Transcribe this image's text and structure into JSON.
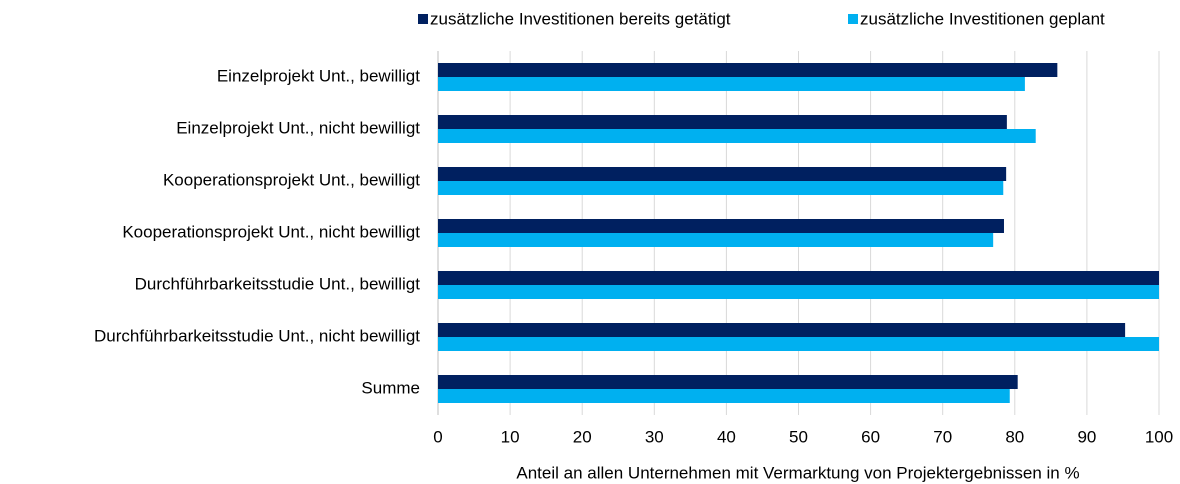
{
  "chart_data": {
    "type": "hbar",
    "categories": [
      "Einzelprojekt Unt., bewilligt",
      "Einzelprojekt Unt., nicht bewilligt",
      "Kooperationsprojekt Unt., bewilligt",
      "Kooperationsprojekt Unt., nicht bewilligt",
      "Durchführbarkeitsstudie Unt., bewilligt",
      "Durchführbarkeitsstudie Unt., nicht bewilligt",
      "Summe"
    ],
    "series": [
      {
        "name": "zusätzliche Investitionen bereits getätigt",
        "color": "#002060",
        "values": [
          85.9,
          78.9,
          78.8,
          78.5,
          100,
          95.3,
          80.4
        ]
      },
      {
        "name": "zusätzliche Investitionen geplant",
        "color": "#00b0f0",
        "values": [
          81.4,
          82.9,
          78.4,
          77.0,
          100,
          100,
          79.3
        ]
      }
    ],
    "xlabel": "Anteil an allen Unternehmen  mit Vermarktung von Projektergebnissen  in %",
    "xlim": [
      0,
      100
    ],
    "xticks": [
      0,
      10,
      20,
      30,
      40,
      50,
      60,
      70,
      80,
      90,
      100
    ],
    "grid": true,
    "legend": "top"
  }
}
